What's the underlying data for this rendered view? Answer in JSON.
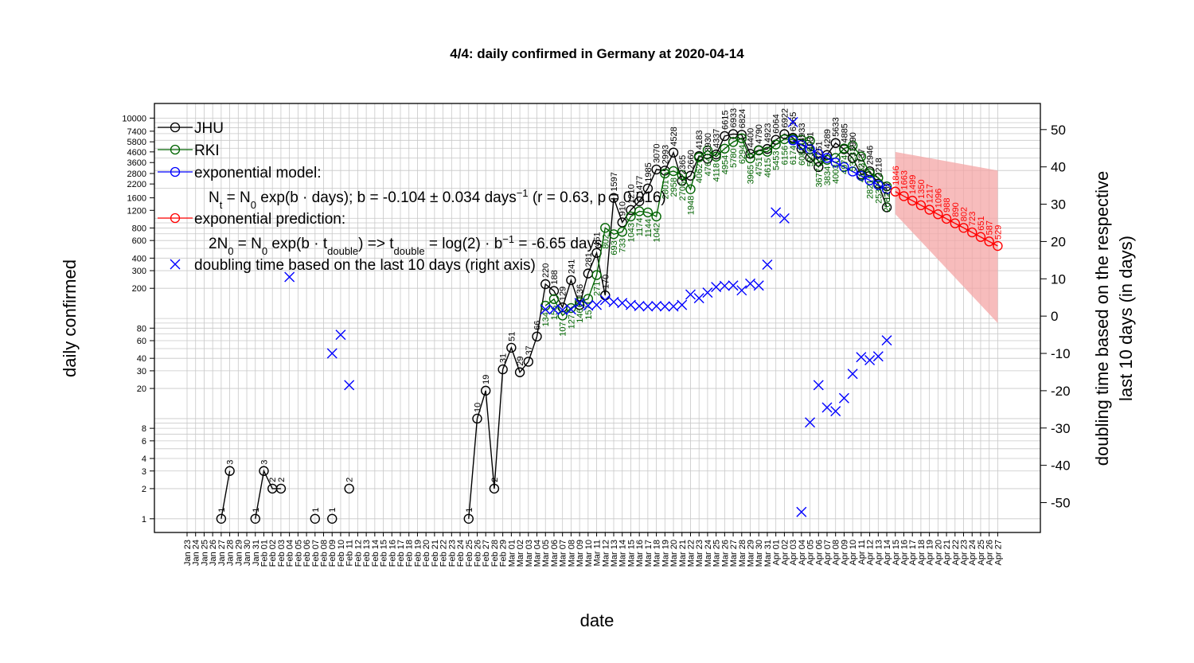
{
  "chart_data": {
    "type": "line",
    "title": "4/4: daily confirmed in Germany at 2020-04-14",
    "xlabel": "date",
    "ylabel": "daily confirmed",
    "ylabel_right": [
      "doubling time based on the respective",
      "last 10 days (in days)"
    ],
    "y_scale": "log",
    "ylim": [
      0.73,
      14000
    ],
    "y_ticks": [
      1,
      2,
      3,
      4,
      6,
      8,
      20,
      30,
      40,
      60,
      80,
      200,
      300,
      400,
      600,
      800,
      1200,
      1600,
      2200,
      2800,
      3600,
      4600,
      5800,
      7400,
      10000
    ],
    "y2lim": [
      -58,
      57
    ],
    "y2_ticks": [
      -50,
      -40,
      -30,
      -20,
      -10,
      0,
      10,
      20,
      30,
      40,
      50
    ],
    "grid": true,
    "legend_position": "top-left",
    "x_start": "2020-01-23",
    "x_end": "2020-04-27",
    "x_tick_labels": [
      "Jan 23",
      "Jan 24",
      "Jan 25",
      "Jan 26",
      "Jan 27",
      "Jan 28",
      "Jan 29",
      "Jan 30",
      "Jan 31",
      "Feb 01",
      "Feb 02",
      "Feb 03",
      "Feb 04",
      "Feb 05",
      "Feb 06",
      "Feb 07",
      "Feb 08",
      "Feb 09",
      "Feb 10",
      "Feb 11",
      "Feb 12",
      "Feb 13",
      "Feb 14",
      "Feb 15",
      "Feb 16",
      "Feb 17",
      "Feb 18",
      "Feb 19",
      "Feb 20",
      "Feb 21",
      "Feb 22",
      "Feb 23",
      "Feb 24",
      "Feb 25",
      "Feb 26",
      "Feb 27",
      "Feb 28",
      "Feb 29",
      "Mar 01",
      "Mar 02",
      "Mar 03",
      "Mar 04",
      "Mar 05",
      "Mar 06",
      "Mar 07",
      "Mar 08",
      "Mar 09",
      "Mar 10",
      "Mar 11",
      "Mar 12",
      "Mar 13",
      "Mar 14",
      "Mar 15",
      "Mar 16",
      "Mar 17",
      "Mar 18",
      "Mar 19",
      "Mar 20",
      "Mar 21",
      "Mar 22",
      "Mar 23",
      "Mar 24",
      "Mar 25",
      "Mar 26",
      "Mar 27",
      "Mar 28",
      "Mar 29",
      "Mar 30",
      "Mar 31",
      "Apr 01",
      "Apr 02",
      "Apr 03",
      "Apr 04",
      "Apr 05",
      "Apr 06",
      "Apr 07",
      "Apr 08",
      "Apr 09",
      "Apr 10",
      "Apr 11",
      "Apr 12",
      "Apr 13",
      "Apr 14",
      "Apr 15",
      "Apr 16",
      "Apr 17",
      "Apr 18",
      "Apr 19",
      "Apr 20",
      "Apr 21",
      "Apr 22",
      "Apr 23",
      "Apr 24",
      "Apr 25",
      "Apr 26",
      "Apr 27"
    ],
    "legend": {
      "jhu": "JHU",
      "rki": "RKI",
      "model": "exponential model:",
      "prediction": "exponential prediction:",
      "doubling": "doubling time based on the last  10  days (right axis)",
      "model_formula": {
        "a": "N",
        "a_sub": "t",
        "b": " = N",
        "b_sub": "0",
        "c": " exp(b · days); b = -0.104 ± 0.034 days",
        "c_sup": "−1",
        "d": " (r = 0.63, p = 0.016)"
      },
      "prediction_formula": {
        "a": "2N",
        "a_sub": "0",
        "b": " = N",
        "b_sub": "0",
        "c": " exp(b · t",
        "c_sub": "double",
        "d": ") => t",
        "d_sub": "double",
        "e": " = log(2) · b",
        "e_sup": "−1",
        "f": " = -6.65 days"
      }
    },
    "colors": {
      "jhu": "#000000",
      "rki": "#006400",
      "model": "#0000ff",
      "prediction": "#ff0000",
      "band": "#f4a6a6",
      "doubling": "#0000ff"
    },
    "series": [
      {
        "name": "JHU",
        "points": [
          [
            "2020-01-27",
            1
          ],
          [
            "2020-01-28",
            3
          ],
          [
            "2020-01-31",
            1
          ],
          [
            "2020-02-01",
            3
          ],
          [
            "2020-02-02",
            2
          ],
          [
            "2020-02-03",
            2
          ],
          [
            "2020-02-07",
            1
          ],
          [
            "2020-02-09",
            1
          ],
          [
            "2020-02-11",
            2
          ],
          [
            "2020-02-25",
            1
          ],
          [
            "2020-02-26",
            10
          ],
          [
            "2020-02-27",
            19
          ],
          [
            "2020-02-28",
            2
          ],
          [
            "2020-02-29",
            31
          ],
          [
            "2020-03-01",
            51
          ],
          [
            "2020-03-02",
            29
          ],
          [
            "2020-03-03",
            37
          ],
          [
            "2020-03-04",
            66
          ],
          [
            "2020-03-05",
            220
          ],
          [
            "2020-03-06",
            188
          ],
          [
            "2020-03-07",
            129
          ],
          [
            "2020-03-08",
            241
          ],
          [
            "2020-03-09",
            136
          ],
          [
            "2020-03-10",
            281
          ],
          [
            "2020-03-11",
            451
          ],
          [
            "2020-03-12",
            170
          ],
          [
            "2020-03-13",
            1597
          ],
          [
            "2020-03-14",
            910
          ],
          [
            "2020-03-15",
            1210
          ],
          [
            "2020-03-16",
            1477
          ],
          [
            "2020-03-17",
            1985
          ],
          [
            "2020-03-18",
            3070
          ],
          [
            "2020-03-19",
            2993
          ],
          [
            "2020-03-20",
            4528
          ],
          [
            "2020-03-21",
            2365
          ],
          [
            "2020-03-22",
            2660
          ],
          [
            "2020-03-23",
            4183
          ],
          [
            "2020-03-24",
            3930
          ],
          [
            "2020-03-25",
            4337
          ],
          [
            "2020-03-26",
            6615
          ],
          [
            "2020-03-27",
            6933
          ],
          [
            "2020-03-28",
            6824
          ],
          [
            "2020-03-29",
            4400
          ],
          [
            "2020-03-30",
            4790
          ],
          [
            "2020-03-31",
            4923
          ],
          [
            "2020-04-01",
            6064
          ],
          [
            "2020-04-02",
            6922
          ],
          [
            "2020-04-03",
            6365
          ],
          [
            "2020-04-04",
            4933
          ],
          [
            "2020-04-05",
            4031
          ],
          [
            "2020-04-06",
            3251
          ],
          [
            "2020-04-07",
            4289
          ],
          [
            "2020-04-08",
            5633
          ],
          [
            "2020-04-09",
            4885
          ],
          [
            "2020-04-10",
            3990
          ],
          [
            "2020-04-11",
            2737
          ],
          [
            "2020-04-12",
            2946
          ],
          [
            "2020-04-13",
            2218
          ],
          [
            "2020-04-14",
            1287
          ]
        ]
      },
      {
        "name": "RKI",
        "points": [
          [
            "2020-03-05",
            134
          ],
          [
            "2020-03-06",
            156
          ],
          [
            "2020-03-07",
            107
          ],
          [
            "2020-03-08",
            127
          ],
          [
            "2020-03-09",
            146
          ],
          [
            "2020-03-10",
            157
          ],
          [
            "2020-03-11",
            271
          ],
          [
            "2020-03-12",
            802
          ],
          [
            "2020-03-13",
            693
          ],
          [
            "2020-03-14",
            733
          ],
          [
            "2020-03-15",
            1043
          ],
          [
            "2020-03-16",
            1174
          ],
          [
            "2020-03-17",
            1144
          ],
          [
            "2020-03-18",
            1042
          ],
          [
            "2020-03-19",
            2801
          ],
          [
            "2020-03-20",
            2958
          ],
          [
            "2020-03-21",
            2705
          ],
          [
            "2020-03-22",
            1948
          ],
          [
            "2020-03-23",
            4062
          ],
          [
            "2020-03-24",
            4764
          ],
          [
            "2020-03-25",
            4118
          ],
          [
            "2020-03-26",
            4954
          ],
          [
            "2020-03-27",
            5780
          ],
          [
            "2020-03-28",
            6294
          ],
          [
            "2020-03-29",
            3965
          ],
          [
            "2020-03-30",
            4751
          ],
          [
            "2020-03-31",
            4615
          ],
          [
            "2020-04-01",
            5453
          ],
          [
            "2020-04-02",
            6156
          ],
          [
            "2020-04-03",
            6174
          ],
          [
            "2020-04-04",
            6082
          ],
          [
            "2020-04-05",
            5936
          ],
          [
            "2020-04-06",
            3677
          ],
          [
            "2020-04-07",
            3834
          ],
          [
            "2020-04-08",
            4003
          ],
          [
            "2020-04-09",
            4974
          ],
          [
            "2020-04-10",
            5323
          ],
          [
            "2020-04-11",
            4133
          ],
          [
            "2020-04-12",
            2821
          ],
          [
            "2020-04-13",
            2537
          ],
          [
            "2020-04-14",
            2082
          ]
        ]
      },
      {
        "name": "exponential model",
        "points": [
          [
            "2020-04-03",
            6000
          ],
          [
            "2020-04-04",
            5400
          ],
          [
            "2020-04-05",
            4900
          ],
          [
            "2020-04-06",
            4400
          ],
          [
            "2020-04-07",
            4000
          ],
          [
            "2020-04-08",
            3600
          ],
          [
            "2020-04-09",
            3250
          ],
          [
            "2020-04-10",
            2930
          ],
          [
            "2020-04-11",
            2650
          ],
          [
            "2020-04-12",
            2390
          ],
          [
            "2020-04-13",
            2150
          ],
          [
            "2020-04-14",
            1950
          ]
        ]
      },
      {
        "name": "exponential prediction",
        "points": [
          [
            "2020-04-15",
            1846
          ],
          [
            "2020-04-16",
            1663
          ],
          [
            "2020-04-17",
            1499
          ],
          [
            "2020-04-18",
            1350
          ],
          [
            "2020-04-19",
            1217
          ],
          [
            "2020-04-20",
            1096
          ],
          [
            "2020-04-21",
            988
          ],
          [
            "2020-04-22",
            890
          ],
          [
            "2020-04-23",
            802
          ],
          [
            "2020-04-24",
            723
          ],
          [
            "2020-04-25",
            651
          ],
          [
            "2020-04-26",
            587
          ],
          [
            "2020-04-27",
            529
          ]
        ]
      }
    ],
    "prediction_band": [
      [
        "2020-04-15",
        4600,
        1100
      ],
      [
        "2020-04-27",
        3000,
        90
      ]
    ],
    "doubling_time": [
      [
        "2020-02-04",
        10.5
      ],
      [
        "2020-02-09",
        -10
      ],
      [
        "2020-02-10",
        -5
      ],
      [
        "2020-02-11",
        -18.5
      ],
      [
        "2020-03-05",
        1.8
      ],
      [
        "2020-03-06",
        1.8
      ],
      [
        "2020-03-07",
        1.6
      ],
      [
        "2020-03-08",
        1.8
      ],
      [
        "2020-03-09",
        3.5
      ],
      [
        "2020-03-10",
        2.8
      ],
      [
        "2020-03-11",
        3
      ],
      [
        "2020-03-12",
        4.3
      ],
      [
        "2020-03-13",
        3.8
      ],
      [
        "2020-03-14",
        3.5
      ],
      [
        "2020-03-15",
        3
      ],
      [
        "2020-03-16",
        2.7
      ],
      [
        "2020-03-17",
        2.6
      ],
      [
        "2020-03-18",
        2.7
      ],
      [
        "2020-03-19",
        2.6
      ],
      [
        "2020-03-20",
        2.6
      ],
      [
        "2020-03-21",
        3
      ],
      [
        "2020-03-22",
        5.8
      ],
      [
        "2020-03-23",
        4.8
      ],
      [
        "2020-03-24",
        6.3
      ],
      [
        "2020-03-25",
        7.8
      ],
      [
        "2020-03-26",
        8.1
      ],
      [
        "2020-03-27",
        8.2
      ],
      [
        "2020-03-28",
        6.9
      ],
      [
        "2020-03-29",
        8.7
      ],
      [
        "2020-03-30",
        8.2
      ],
      [
        "2020-03-31",
        13.8
      ],
      [
        "2020-04-01",
        27.8
      ],
      [
        "2020-04-02",
        26.2
      ],
      [
        "2020-04-03",
        52
      ],
      [
        "2020-04-04",
        -52.5
      ],
      [
        "2020-04-05",
        -28.5
      ],
      [
        "2020-04-06",
        -18.5
      ],
      [
        "2020-04-07",
        -24.5
      ],
      [
        "2020-04-08",
        -25.5
      ],
      [
        "2020-04-09",
        -22
      ],
      [
        "2020-04-10",
        -15.5
      ],
      [
        "2020-04-11",
        -11
      ],
      [
        "2020-04-12",
        -11.8
      ],
      [
        "2020-04-13",
        -10.8
      ],
      [
        "2020-04-14",
        -6.5
      ]
    ]
  }
}
